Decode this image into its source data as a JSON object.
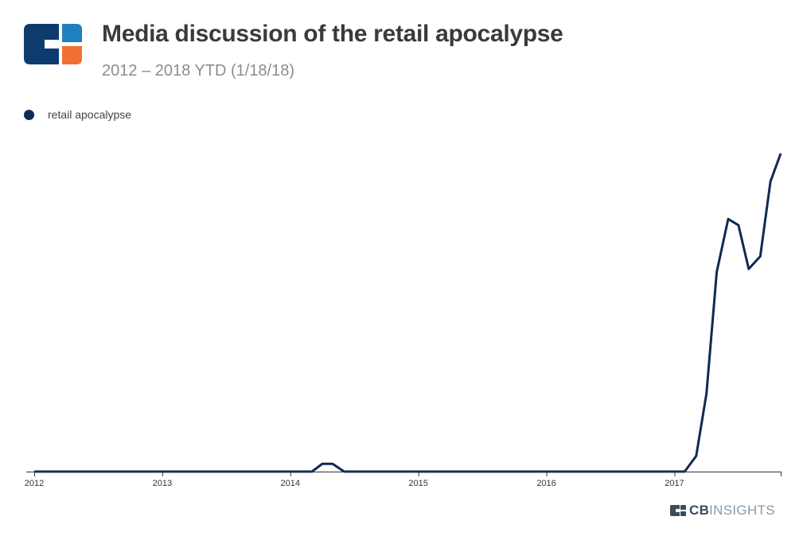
{
  "header": {
    "title": "Media discussion of the retail apocalypse",
    "subtitle": "2012 – 2018 YTD (1/18/18)"
  },
  "brand": {
    "cb": "CB",
    "insights": "INSIGHTS"
  },
  "colors": {
    "series": "#0d2b52",
    "logo_dark": "#0d3b6e",
    "logo_light": "#1f7fc1",
    "logo_orange": "#f07034",
    "axis": "#333333"
  },
  "chart_data": {
    "type": "line",
    "title": "Media discussion of the retail apocalypse",
    "subtitle": "2012 – 2018 YTD (1/18/18)",
    "xlabel": "",
    "ylabel": "",
    "grid": false,
    "legend": "top-left",
    "xlim": [
      2012.0,
      2017.83
    ],
    "ylim": [
      0,
      110
    ],
    "x_ticks": [
      "2012",
      "2013",
      "2014",
      "2015",
      "2016",
      "2017"
    ],
    "series": [
      {
        "name": "retail apocalypse",
        "x": [
          2012.0,
          2014.17,
          2014.25,
          2014.33,
          2014.42,
          2017.08,
          2017.17,
          2017.25,
          2017.33,
          2017.42,
          2017.5,
          2017.58,
          2017.67,
          2017.75,
          2017.83
        ],
        "y": [
          0,
          0,
          2.5,
          2.5,
          0,
          0,
          5,
          25,
          64,
          81,
          79,
          65,
          69,
          93,
          102
        ]
      }
    ]
  }
}
